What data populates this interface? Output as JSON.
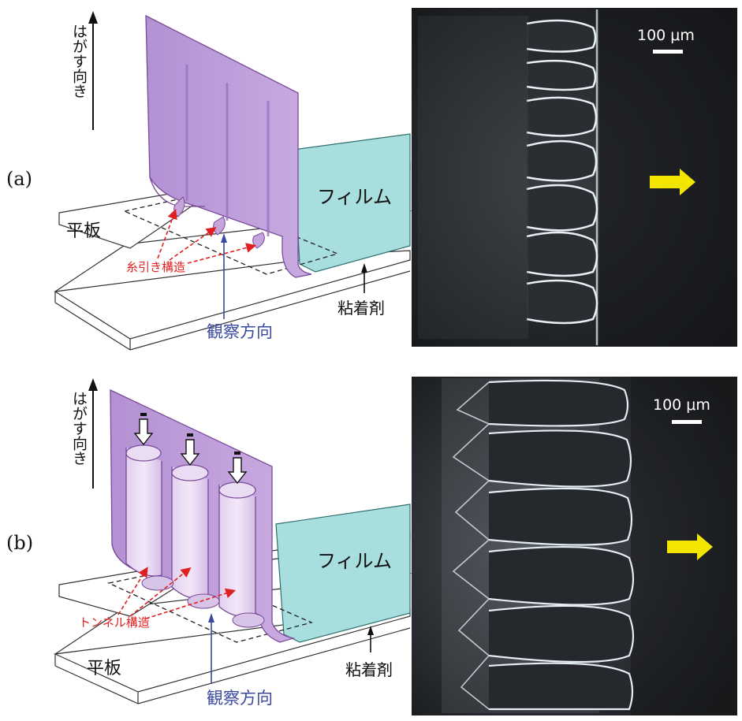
{
  "panel_a": {
    "label": "(a)",
    "peel_direction": "はがす向き",
    "film": "フィルム",
    "plate": "平板",
    "structure": "糸引き構造",
    "observation": "観察方向",
    "adhesive": "粘着剤",
    "scalebar": "100 μm"
  },
  "panel_b": {
    "label": "(b)",
    "peel_direction": "はがす向き",
    "film": "フィルム",
    "plate": "平板",
    "structure": "トンネル構造",
    "observation": "観察方向",
    "adhesive": "粘着剤",
    "scalebar": "100 μm"
  },
  "colors": {
    "film_purple": "#c4a6dd",
    "film_purple_edge": "#7a4a9a",
    "film_cyan": "#a8dede",
    "red_label": "#e02020",
    "blue_label": "#3a4aa0",
    "arrow_yellow": "#f2e600",
    "photo_bg": "#1b1d20"
  }
}
